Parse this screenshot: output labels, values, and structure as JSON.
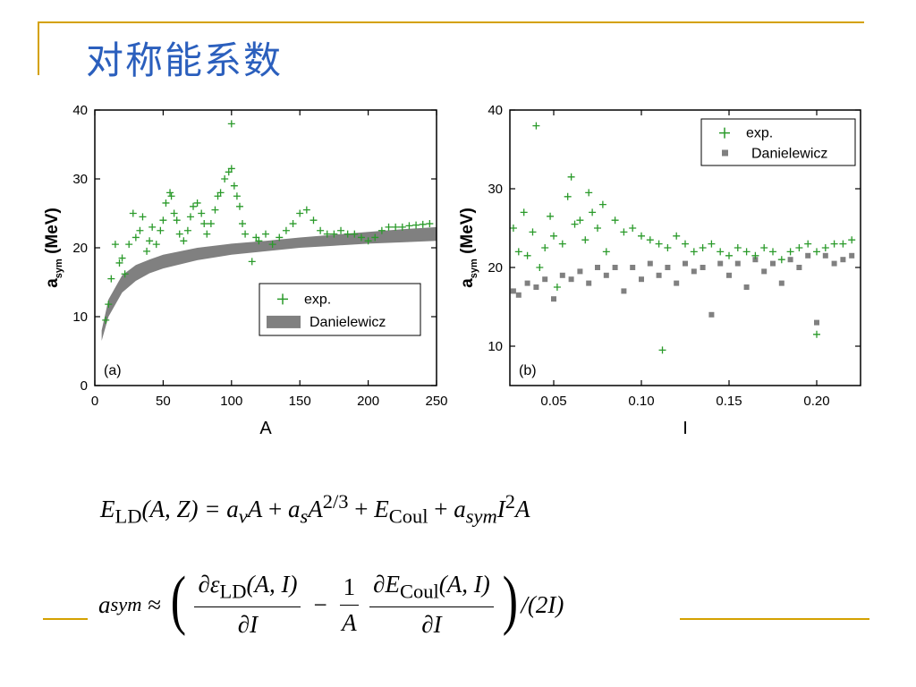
{
  "slide": {
    "title": "对称能系数"
  },
  "equations": {
    "eq1": {
      "lhs_sym": "E",
      "lhs_sub": "LD",
      "lhs_args": "(A, Z) = ",
      "t1": "a",
      "t1_sub": "v",
      "t1_var": "A",
      "plus1": " + ",
      "t2": "a",
      "t2_sub": "s",
      "t2_var": "A",
      "t2_exp": "2/3",
      "plus2": " + ",
      "t3": "E",
      "t3_sub": "Coul",
      "plus3": " + ",
      "t4": "a",
      "t4_sub": "sym",
      "t4_var": "I",
      "t4_exp": "2",
      "t4_var2": "A"
    },
    "eq2": {
      "lhs": "a",
      "lhs_sub": "sym",
      "approx": " ≈ ",
      "f1_num_pre": "∂ε",
      "f1_num_sub": "LD",
      "f1_num_post": "(A, I)",
      "f1_den": "∂I",
      "minus": "−",
      "f2_num": "1",
      "f2_den": "A",
      "f3_num_pre": "∂E",
      "f3_num_sub": "Coul",
      "f3_num_post": "(A, I)",
      "f3_den": "∂I",
      "tail": "/(2I)"
    }
  },
  "chart_data": [
    {
      "type": "scatter",
      "panel_label": "(a)",
      "xlabel": "A",
      "ylabel_main": "a",
      "ylabel_sub": "sym",
      "ylabel_unit": "(MeV)",
      "xlim": [
        0,
        250
      ],
      "ylim": [
        0,
        40
      ],
      "xticks": [
        0,
        50,
        100,
        150,
        200,
        250
      ],
      "yticks": [
        0,
        10,
        20,
        30,
        40
      ],
      "legend": {
        "position": "lower-right",
        "entries": [
          "exp.",
          "Danielewicz"
        ]
      },
      "colors": {
        "exp": "#2a9a2a",
        "danielewicz": "#808080"
      },
      "series": [
        {
          "name": "exp.",
          "marker": "plus",
          "x": [
            8,
            10,
            12,
            15,
            18,
            20,
            22,
            25,
            28,
            30,
            33,
            35,
            38,
            40,
            42,
            45,
            48,
            50,
            52,
            55,
            56,
            58,
            60,
            62,
            65,
            68,
            70,
            72,
            75,
            78,
            80,
            82,
            85,
            88,
            90,
            92,
            95,
            98,
            100,
            100,
            102,
            104,
            106,
            108,
            110,
            115,
            118,
            120,
            125,
            130,
            135,
            140,
            145,
            150,
            155,
            160,
            165,
            170,
            175,
            180,
            185,
            190,
            195,
            200,
            205,
            210,
            215,
            220,
            225,
            230,
            235,
            240,
            245
          ],
          "y": [
            9.5,
            11.8,
            15.5,
            20.5,
            17.8,
            18.5,
            16.2,
            20.5,
            25.0,
            21.5,
            22.5,
            24.5,
            19.5,
            21.0,
            23.0,
            20.5,
            22.5,
            24.0,
            26.5,
            28.0,
            27.5,
            25.0,
            24.0,
            22.0,
            21.0,
            22.5,
            24.5,
            26.0,
            26.5,
            25.0,
            23.5,
            22.0,
            23.5,
            25.5,
            27.5,
            28.0,
            30.0,
            31.0,
            38.0,
            31.5,
            29.0,
            27.5,
            26.0,
            23.5,
            22.0,
            18.0,
            21.5,
            21.0,
            22.0,
            20.5,
            21.5,
            22.5,
            23.5,
            25.0,
            25.5,
            24.0,
            22.5,
            22.0,
            22.0,
            22.5,
            22.0,
            22.0,
            21.5,
            21.0,
            21.5,
            22.5,
            23.0,
            23.0,
            23.0,
            23.2,
            23.3,
            23.4,
            23.5
          ]
        },
        {
          "name": "Danielewicz",
          "marker": "band",
          "x": [
            5,
            10,
            20,
            30,
            40,
            50,
            75,
            100,
            125,
            150,
            175,
            200,
            225,
            250
          ],
          "y_low": [
            6.5,
            10.0,
            13.5,
            15.2,
            16.3,
            17.0,
            18.2,
            19.0,
            19.5,
            20.0,
            20.3,
            20.6,
            20.8,
            21.0
          ],
          "y_high": [
            8.0,
            12.5,
            16.0,
            17.5,
            18.3,
            19.0,
            20.0,
            20.6,
            21.0,
            21.5,
            21.9,
            22.3,
            22.7,
            23.0
          ]
        }
      ]
    },
    {
      "type": "scatter",
      "panel_label": "(b)",
      "xlabel": "I",
      "ylabel_main": "a",
      "ylabel_sub": "sym",
      "ylabel_unit": "(MeV)",
      "xlim": [
        0.025,
        0.225
      ],
      "ylim": [
        5,
        40
      ],
      "xticks": [
        0.05,
        0.1,
        0.15,
        0.2
      ],
      "yticks": [
        10,
        20,
        30,
        40
      ],
      "legend": {
        "position": "top-right",
        "entries": [
          "exp.",
          "Danielewicz"
        ]
      },
      "colors": {
        "exp": "#2a9a2a",
        "danielewicz": "#808080"
      },
      "series": [
        {
          "name": "exp.",
          "marker": "plus",
          "x": [
            0.027,
            0.03,
            0.033,
            0.035,
            0.038,
            0.04,
            0.042,
            0.045,
            0.048,
            0.05,
            0.052,
            0.055,
            0.058,
            0.06,
            0.062,
            0.065,
            0.068,
            0.07,
            0.072,
            0.075,
            0.078,
            0.08,
            0.085,
            0.09,
            0.095,
            0.1,
            0.105,
            0.11,
            0.112,
            0.115,
            0.12,
            0.125,
            0.13,
            0.135,
            0.14,
            0.145,
            0.15,
            0.155,
            0.16,
            0.165,
            0.17,
            0.175,
            0.18,
            0.185,
            0.19,
            0.195,
            0.2,
            0.2,
            0.205,
            0.21,
            0.215,
            0.22
          ],
          "y": [
            25.0,
            22.0,
            27.0,
            21.5,
            24.5,
            38.0,
            20.0,
            22.5,
            26.5,
            24.0,
            17.5,
            23.0,
            29.0,
            31.5,
            25.5,
            26.0,
            23.5,
            29.5,
            27.0,
            25.0,
            28.0,
            22.0,
            26.0,
            24.5,
            25.0,
            24.0,
            23.5,
            23.0,
            9.5,
            22.5,
            24.0,
            23.0,
            22.0,
            22.5,
            23.0,
            22.0,
            21.5,
            22.5,
            22.0,
            21.5,
            22.5,
            22.0,
            21.0,
            22.0,
            22.5,
            23.0,
            22.0,
            11.5,
            22.5,
            23.0,
            23.0,
            23.5
          ]
        },
        {
          "name": "Danielewicz",
          "marker": "square",
          "x": [
            0.027,
            0.03,
            0.035,
            0.04,
            0.045,
            0.05,
            0.055,
            0.06,
            0.065,
            0.07,
            0.075,
            0.08,
            0.085,
            0.09,
            0.095,
            0.1,
            0.105,
            0.11,
            0.115,
            0.12,
            0.125,
            0.13,
            0.135,
            0.14,
            0.145,
            0.15,
            0.155,
            0.16,
            0.165,
            0.17,
            0.175,
            0.18,
            0.185,
            0.19,
            0.195,
            0.2,
            0.205,
            0.21,
            0.215,
            0.22
          ],
          "y": [
            17.0,
            16.5,
            18.0,
            17.5,
            18.5,
            16.0,
            19.0,
            18.5,
            19.5,
            18.0,
            20.0,
            19.0,
            20.0,
            17.0,
            20.0,
            18.5,
            20.5,
            19.0,
            20.0,
            18.0,
            20.5,
            19.5,
            20.0,
            14.0,
            20.5,
            19.0,
            20.5,
            17.5,
            21.0,
            19.5,
            20.5,
            18.0,
            21.0,
            20.0,
            21.5,
            13.0,
            21.5,
            20.5,
            21.0,
            21.5
          ]
        }
      ]
    }
  ]
}
